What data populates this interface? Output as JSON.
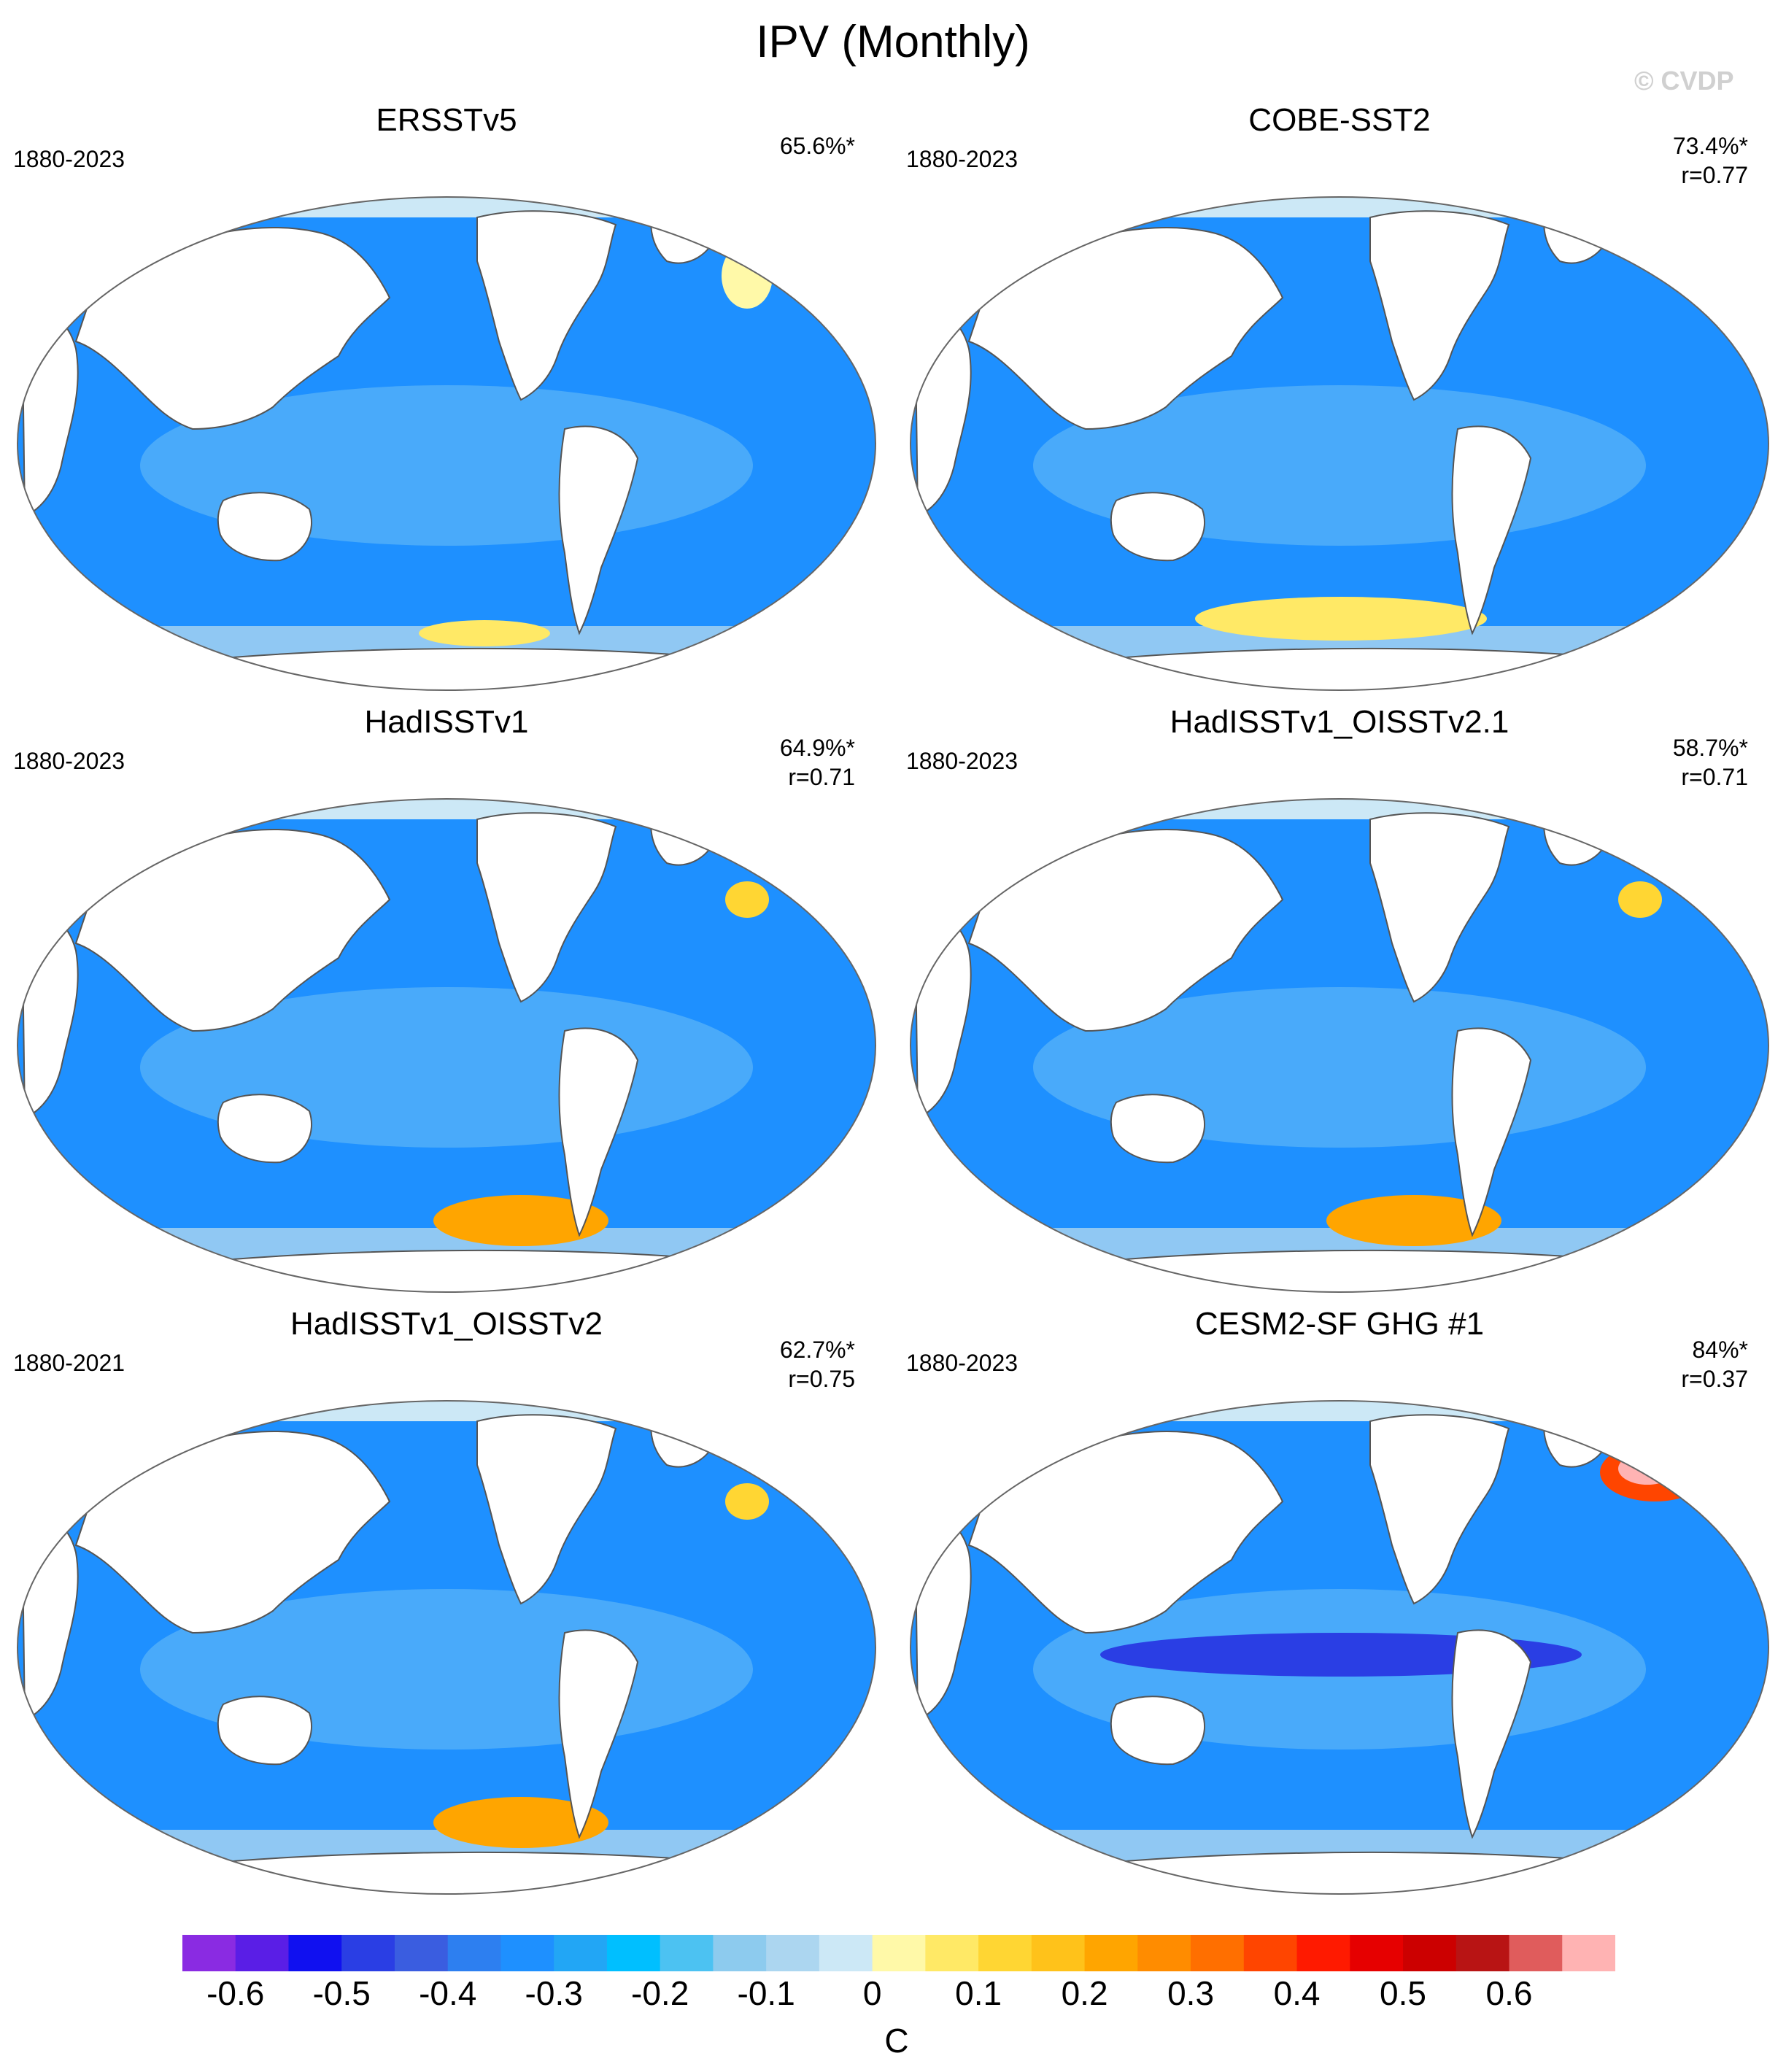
{
  "title": "IPV (Monthly)",
  "copyright": "© CVDP",
  "panels": [
    {
      "name": "ERSSTv5",
      "period": "1880-2023",
      "variance": "65.6%*",
      "r": "",
      "hotspot": "north-atlantic-mild"
    },
    {
      "name": "COBE-SST2",
      "period": "1880-2023",
      "variance": "73.4%*",
      "r": "r=0.77",
      "hotspot": "southern-ocean-yellow"
    },
    {
      "name": "HadISSTv1",
      "period": "1880-2023",
      "variance": "64.9%*",
      "r": "r=0.71",
      "hotspot": "southern-ocean-orange"
    },
    {
      "name": "HadISSTv1_OISSTv2.1",
      "period": "1880-2023",
      "variance": "58.7%*",
      "r": "r=0.71",
      "hotspot": "southern-ocean-orange"
    },
    {
      "name": "HadISSTv1_OISSTv2",
      "period": "1880-2021",
      "variance": "62.7%*",
      "r": "r=0.75",
      "hotspot": "southern-ocean-orange"
    },
    {
      "name": "CESM2-SF GHG #1",
      "period": "1880-2023",
      "variance": "84%*",
      "r": "r=0.37",
      "hotspot": "north-atlantic-red"
    }
  ],
  "colorbar": {
    "unit": "C",
    "ticks": [
      "-0.6",
      "-0.5",
      "-0.4",
      "-0.3",
      "-0.2",
      "-0.1",
      "0",
      "0.1",
      "0.2",
      "0.3",
      "0.4",
      "0.5",
      "0.6"
    ],
    "colors": [
      "#8a2be2",
      "#5a1ee6",
      "#1010f0",
      "#2a3ee4",
      "#3a5de0",
      "#2d7ff0",
      "#1e90ff",
      "#22a6f5",
      "#00bfff",
      "#4cc2f2",
      "#8dcbee",
      "#acd6f0",
      "#cce8f6",
      "#fff9a8",
      "#ffe966",
      "#ffd633",
      "#ffc21a",
      "#ffa500",
      "#ff8c00",
      "#ff6f00",
      "#ff4500",
      "#ff1a00",
      "#e60000",
      "#cc0000",
      "#b81414",
      "#e05c5c",
      "#ffb3b3"
    ]
  },
  "colors": {
    "land": "#ffffff",
    "ocean_base": "#1e90ff",
    "ocean_light": "#6ec0f5",
    "coast": "#555555"
  }
}
